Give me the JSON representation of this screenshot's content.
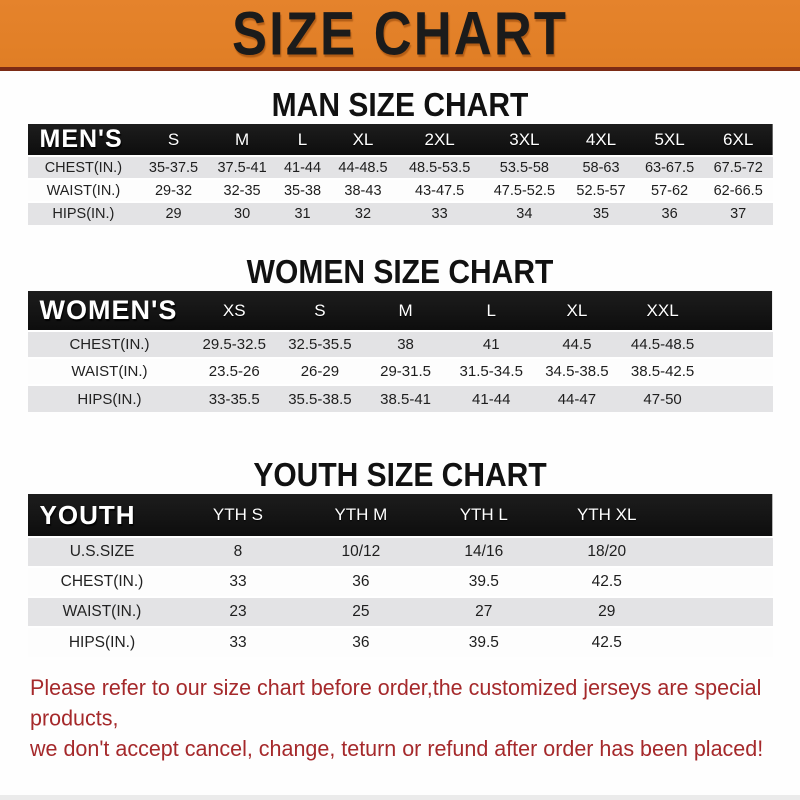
{
  "banner": {
    "title": "SIZE CHART"
  },
  "colors": {
    "banner-bg": "#E5832C",
    "banner-border": "#7B2B15",
    "row-gray": "#E3E3E5",
    "footer-red": "#A5292B"
  },
  "chart_data": [
    {
      "type": "table",
      "title": "MAN SIZE CHART",
      "row_header_label": "MEN'S",
      "columns": [
        "S",
        "M",
        "L",
        "XL",
        "2XL",
        "3XL",
        "4XL",
        "5XL",
        "6XL"
      ],
      "rows": [
        {
          "label": "CHEST(IN.)",
          "values": [
            "35-37.5",
            "37.5-41",
            "41-44",
            "44-48.5",
            "48.5-53.5",
            "53.5-58",
            "58-63",
            "63-67.5",
            "67.5-72"
          ]
        },
        {
          "label": "WAIST(IN.)",
          "values": [
            "29-32",
            "32-35",
            "35-38",
            "38-43",
            "43-47.5",
            "47.5-52.5",
            "52.5-57",
            "57-62",
            "62-66.5"
          ]
        },
        {
          "label": "HIPS(IN.)",
          "values": [
            "29",
            "30",
            "31",
            "32",
            "33",
            "34",
            "35",
            "36",
            "37"
          ]
        }
      ]
    },
    {
      "type": "table",
      "title": "WOMEN SIZE CHART",
      "row_header_label": "WOMEN'S",
      "columns": [
        "XS",
        "S",
        "M",
        "L",
        "XL",
        "XXL"
      ],
      "rows": [
        {
          "label": "CHEST(IN.)",
          "values": [
            "29.5-32.5",
            "32.5-35.5",
            "38",
            "41",
            "44.5",
            "44.5-48.5"
          ]
        },
        {
          "label": "WAIST(IN.)",
          "values": [
            "23.5-26",
            "26-29",
            "29-31.5",
            "31.5-34.5",
            "34.5-38.5",
            "38.5-42.5"
          ]
        },
        {
          "label": "HIPS(IN.)",
          "values": [
            "33-35.5",
            "35.5-38.5",
            "38.5-41",
            "41-44",
            "44-47",
            "47-50"
          ]
        }
      ]
    },
    {
      "type": "table",
      "title": "YOUTH SIZE CHART",
      "row_header_label": "YOUTH",
      "columns": [
        "YTH S",
        "YTH M",
        "YTH L",
        "YTH XL"
      ],
      "rows": [
        {
          "label": "U.S.SIZE",
          "values": [
            "8",
            "10/12",
            "14/16",
            "18/20"
          ]
        },
        {
          "label": "CHEST(IN.)",
          "values": [
            "33",
            "36",
            "39.5",
            "42.5"
          ]
        },
        {
          "label": "WAIST(IN.)",
          "values": [
            "23",
            "25",
            "27",
            "29"
          ]
        },
        {
          "label": "HIPS(IN.)",
          "values": [
            "33",
            "36",
            "39.5",
            "42.5"
          ]
        }
      ]
    }
  ],
  "footer": {
    "line1": "Please refer to our size chart before order,the customized jerseys are special products,",
    "line2": "we don't accept cancel, change, teturn or refund after order has been placed!"
  }
}
